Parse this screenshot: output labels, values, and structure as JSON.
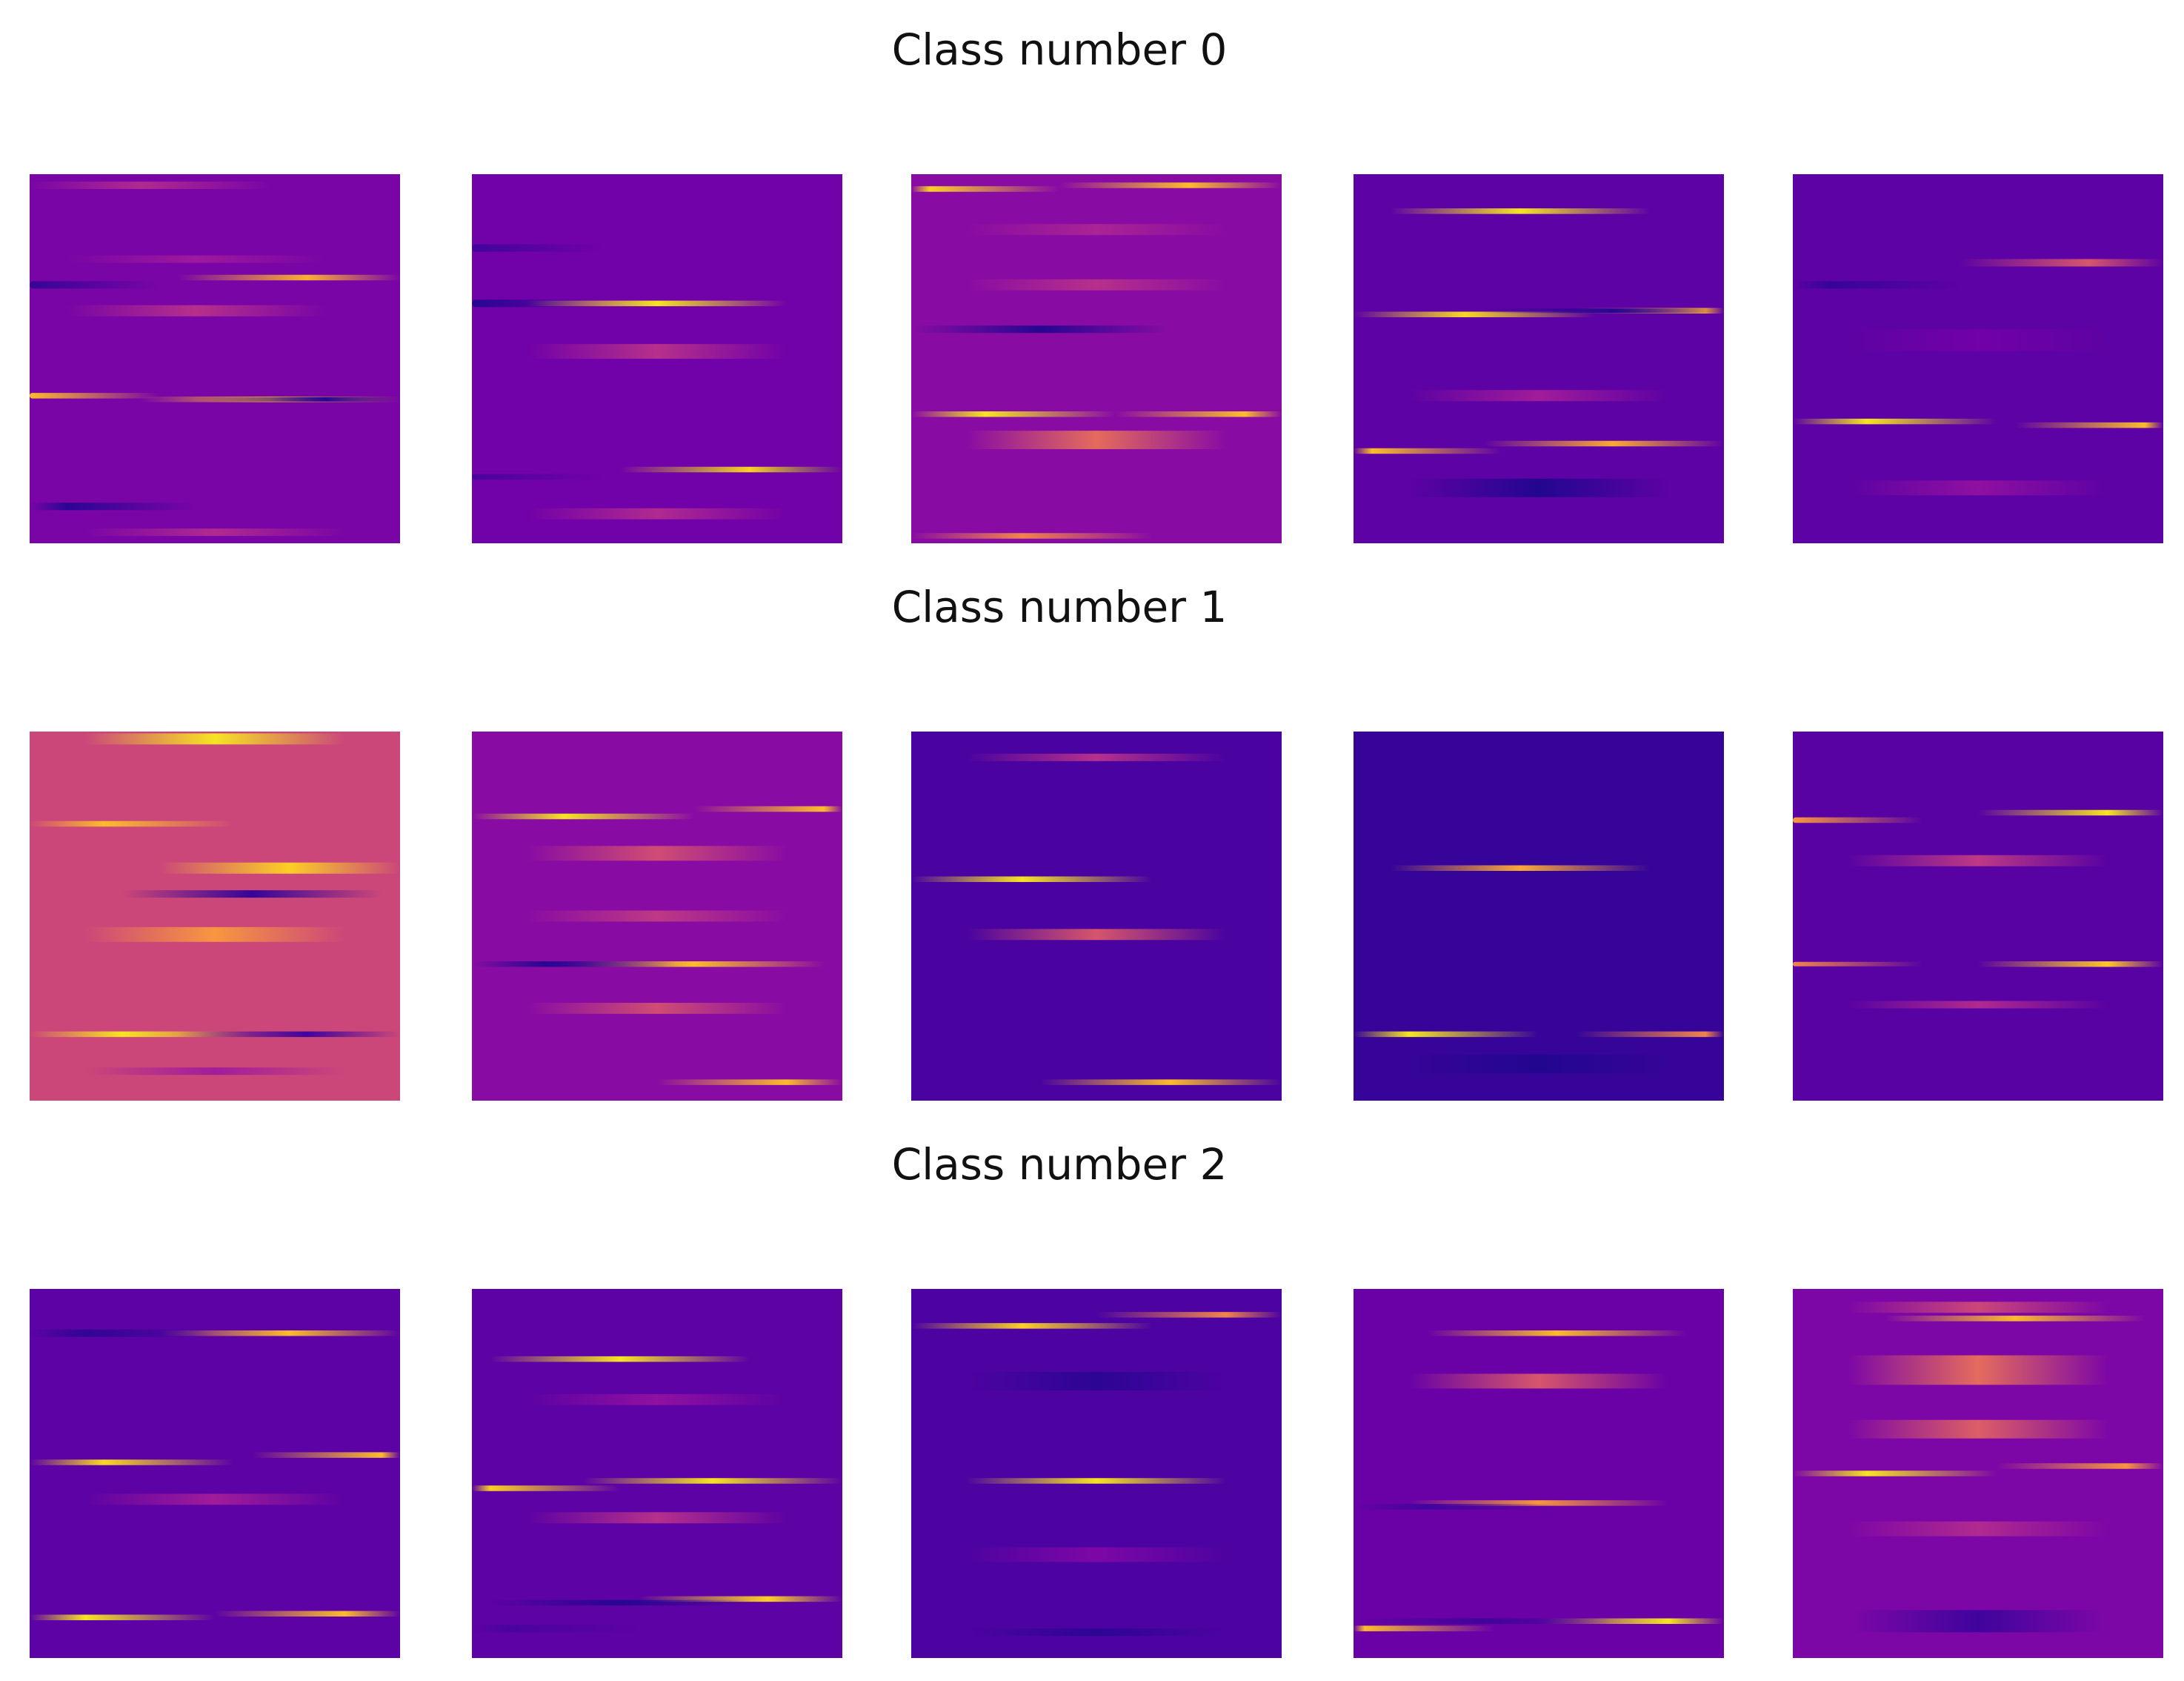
{
  "colormap": "plasma",
  "colormap_stops": [
    "#0d0887",
    "#46039f",
    "#7201a8",
    "#9c179e",
    "#bd3786",
    "#d8576b",
    "#ed7953",
    "#fb9f3a",
    "#fdca26",
    "#f0f921"
  ],
  "rows": [
    {
      "title": "Class number 0",
      "images": [
        {
          "base": 0.24,
          "bands": [
            [
              0.03,
              0.02,
              0.4,
              0.3
            ],
            [
              0.23,
              0.02,
              0.34,
              0.45
            ],
            [
              0.28,
              0.015,
              0.82,
              0.75
            ],
            [
              0.3,
              0.02,
              0.08,
              0.0
            ],
            [
              0.37,
              0.03,
              0.42,
              0.45
            ],
            [
              0.6,
              0.015,
              0.85,
              0.0
            ],
            [
              0.61,
              0.015,
              0.82,
              0.65
            ],
            [
              0.61,
              0.012,
              0.05,
              0.8
            ],
            [
              0.9,
              0.02,
              0.06,
              0.1
            ],
            [
              0.97,
              0.02,
              0.4,
              0.5
            ]
          ]
        },
        {
          "base": 0.22,
          "bands": [
            [
              0.2,
              0.02,
              0.1,
              0.0
            ],
            [
              0.35,
              0.02,
              0.05,
              0.0
            ],
            [
              0.35,
              0.015,
              0.95,
              0.5
            ],
            [
              0.48,
              0.04,
              0.42,
              0.5
            ],
            [
              0.8,
              0.015,
              0.05,
              0.8
            ],
            [
              0.8,
              0.015,
              0.9,
              0.75
            ],
            [
              0.82,
              0.015,
              0.12,
              0.0
            ],
            [
              0.92,
              0.03,
              0.4,
              0.5
            ]
          ]
        },
        {
          "base": 0.28,
          "bands": [
            [
              0.03,
              0.015,
              0.85,
              0.75
            ],
            [
              0.04,
              0.015,
              0.9,
              0.05
            ],
            [
              0.15,
              0.03,
              0.38,
              0.5
            ],
            [
              0.3,
              0.03,
              0.42,
              0.5
            ],
            [
              0.42,
              0.02,
              0.05,
              0.35
            ],
            [
              0.65,
              0.015,
              0.95,
              0.2
            ],
            [
              0.65,
              0.015,
              0.85,
              0.9
            ],
            [
              0.72,
              0.05,
              0.62,
              0.5
            ],
            [
              0.98,
              0.015,
              0.7,
              0.3
            ]
          ]
        },
        {
          "base": 0.17,
          "bands": [
            [
              0.1,
              0.015,
              0.95,
              0.45
            ],
            [
              0.38,
              0.015,
              0.92,
              0.3
            ],
            [
              0.37,
              0.015,
              0.8,
              0.95
            ],
            [
              0.37,
              0.012,
              0.05,
              0.7
            ],
            [
              0.75,
              0.015,
              0.85,
              0.05
            ],
            [
              0.73,
              0.015,
              0.8,
              0.7
            ],
            [
              0.85,
              0.05,
              0.04,
              0.5
            ],
            [
              0.6,
              0.03,
              0.35,
              0.5
            ]
          ]
        },
        {
          "base": 0.17,
          "bands": [
            [
              0.24,
              0.02,
              0.55,
              0.8
            ],
            [
              0.3,
              0.02,
              0.08,
              0.1
            ],
            [
              0.45,
              0.06,
              0.22,
              0.5
            ],
            [
              0.67,
              0.015,
              0.95,
              0.2
            ],
            [
              0.68,
              0.015,
              0.85,
              0.95
            ],
            [
              0.85,
              0.04,
              0.3,
              0.5
            ]
          ]
        }
      ]
    },
    {
      "title": "Class number 1",
      "images": [
        {
          "base": 0.5,
          "bands": [
            [
              0.02,
              0.03,
              0.95,
              0.5
            ],
            [
              0.25,
              0.015,
              0.85,
              0.2
            ],
            [
              0.37,
              0.03,
              0.9,
              0.7
            ],
            [
              0.44,
              0.02,
              0.08,
              0.6
            ],
            [
              0.55,
              0.04,
              0.75,
              0.5
            ],
            [
              0.82,
              0.015,
              0.95,
              0.25
            ],
            [
              0.82,
              0.015,
              0.1,
              0.75
            ],
            [
              0.92,
              0.02,
              0.35,
              0.5
            ]
          ]
        },
        {
          "base": 0.28,
          "bands": [
            [
              0.23,
              0.015,
              0.95,
              0.25
            ],
            [
              0.21,
              0.015,
              0.85,
              0.95
            ],
            [
              0.33,
              0.04,
              0.52,
              0.5
            ],
            [
              0.5,
              0.03,
              0.45,
              0.5
            ],
            [
              0.63,
              0.015,
              0.85,
              0.6
            ],
            [
              0.63,
              0.015,
              0.05,
              0.2
            ],
            [
              0.75,
              0.03,
              0.52,
              0.5
            ],
            [
              0.95,
              0.015,
              0.85,
              0.85
            ]
          ]
        },
        {
          "base": 0.12,
          "bands": [
            [
              0.07,
              0.02,
              0.42,
              0.5
            ],
            [
              0.4,
              0.015,
              0.95,
              0.3
            ],
            [
              0.55,
              0.03,
              0.55,
              0.5
            ],
            [
              0.95,
              0.015,
              0.85,
              0.7
            ]
          ]
        },
        {
          "base": 0.08,
          "bands": [
            [
              0.37,
              0.015,
              0.8,
              0.45
            ],
            [
              0.82,
              0.015,
              0.95,
              0.15
            ],
            [
              0.82,
              0.015,
              0.7,
              0.95
            ],
            [
              0.9,
              0.05,
              0.04,
              0.5
            ]
          ]
        },
        {
          "base": 0.16,
          "bands": [
            [
              0.22,
              0.015,
              0.95,
              0.85
            ],
            [
              0.24,
              0.015,
              0.75,
              0.0
            ],
            [
              0.35,
              0.03,
              0.45,
              0.5
            ],
            [
              0.63,
              0.015,
              0.88,
              0.85
            ],
            [
              0.63,
              0.012,
              0.7,
              0.0
            ],
            [
              0.74,
              0.02,
              0.4,
              0.5
            ]
          ]
        }
      ]
    },
    {
      "title": "Class number 2",
      "images": [
        {
          "base": 0.17,
          "bands": [
            [
              0.12,
              0.015,
              0.85,
              0.7
            ],
            [
              0.12,
              0.02,
              0.07,
              0.15
            ],
            [
              0.47,
              0.015,
              0.92,
              0.2
            ],
            [
              0.45,
              0.015,
              0.85,
              0.95
            ],
            [
              0.57,
              0.03,
              0.35,
              0.5
            ],
            [
              0.89,
              0.015,
              0.95,
              0.15
            ],
            [
              0.88,
              0.015,
              0.85,
              0.85
            ]
          ]
        },
        {
          "base": 0.17,
          "bands": [
            [
              0.19,
              0.015,
              0.95,
              0.4
            ],
            [
              0.3,
              0.03,
              0.3,
              0.5
            ],
            [
              0.52,
              0.015,
              0.95,
              0.65
            ],
            [
              0.54,
              0.015,
              0.9,
              0.05
            ],
            [
              0.62,
              0.03,
              0.42,
              0.5
            ],
            [
              0.84,
              0.015,
              0.9,
              0.8
            ],
            [
              0.85,
              0.015,
              0.05,
              0.4
            ],
            [
              0.92,
              0.02,
              0.12,
              0.1
            ]
          ]
        },
        {
          "base": 0.13,
          "bands": [
            [
              0.1,
              0.015,
              0.9,
              0.3
            ],
            [
              0.07,
              0.015,
              0.7,
              0.85
            ],
            [
              0.25,
              0.05,
              0.06,
              0.5
            ],
            [
              0.52,
              0.015,
              0.95,
              0.5
            ],
            [
              0.72,
              0.04,
              0.25,
              0.5
            ],
            [
              0.93,
              0.02,
              0.06,
              0.5
            ]
          ]
        },
        {
          "base": 0.2,
          "bands": [
            [
              0.12,
              0.015,
              0.85,
              0.55
            ],
            [
              0.25,
              0.04,
              0.55,
              0.5
            ],
            [
              0.58,
              0.015,
              0.75,
              0.5
            ],
            [
              0.59,
              0.015,
              0.1,
              0.2
            ],
            [
              0.9,
              0.015,
              0.95,
              0.85
            ],
            [
              0.92,
              0.015,
              0.85,
              0.03
            ],
            [
              0.9,
              0.015,
              0.1,
              0.35
            ]
          ]
        },
        {
          "base": 0.25,
          "bands": [
            [
              0.05,
              0.03,
              0.5,
              0.5
            ],
            [
              0.08,
              0.015,
              0.85,
              0.6
            ],
            [
              0.22,
              0.08,
              0.62,
              0.5
            ],
            [
              0.38,
              0.05,
              0.58,
              0.5
            ],
            [
              0.5,
              0.015,
              0.95,
              0.2
            ],
            [
              0.48,
              0.015,
              0.75,
              0.9
            ],
            [
              0.65,
              0.04,
              0.4,
              0.5
            ],
            [
              0.9,
              0.06,
              0.1,
              0.5
            ]
          ]
        }
      ]
    }
  ]
}
